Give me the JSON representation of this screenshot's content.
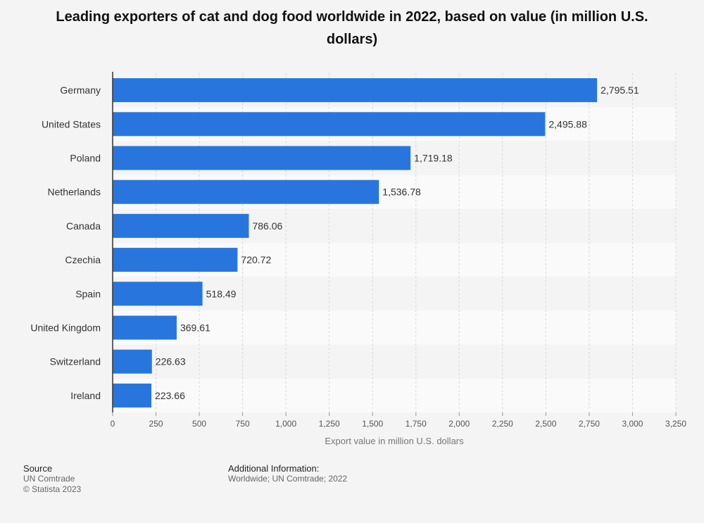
{
  "chart_data": {
    "type": "bar",
    "orientation": "horizontal",
    "title": "Leading exporters of cat and dog food worldwide in 2022, based on value (in million U.S. dollars)",
    "categories": [
      "Germany",
      "United States",
      "Poland",
      "Netherlands",
      "Canada",
      "Czechia",
      "Spain",
      "United Kingdom",
      "Switzerland",
      "Ireland"
    ],
    "values": [
      2795.51,
      2495.88,
      1719.18,
      1536.78,
      786.06,
      720.72,
      518.49,
      369.61,
      226.63,
      223.66
    ],
    "value_labels": [
      "2,795.51",
      "2,495.88",
      "1,719.18",
      "1,536.78",
      "786.06",
      "720.72",
      "518.49",
      "369.61",
      "226.63",
      "223.66"
    ],
    "xlabel": "Export value in million U.S. dollars",
    "ylabel": "",
    "xlim": [
      0,
      3250
    ],
    "xticks": [
      0,
      250,
      500,
      750,
      1000,
      1250,
      1500,
      1750,
      2000,
      2250,
      2500,
      2750,
      3000,
      3250
    ],
    "xtick_labels": [
      "0",
      "250",
      "500",
      "750",
      "1,000",
      "1,250",
      "1,500",
      "1,750",
      "2,000",
      "2,250",
      "2,500",
      "2,750",
      "3,000",
      "3,250"
    ],
    "grid": true,
    "bar_color": "#2876dd"
  },
  "footer": {
    "source_heading": "Source",
    "source_name": "UN Comtrade",
    "copyright": "© Statista 2023",
    "info_heading": "Additional Information:",
    "info_text": "Worldwide; UN Comtrade; 2022"
  }
}
